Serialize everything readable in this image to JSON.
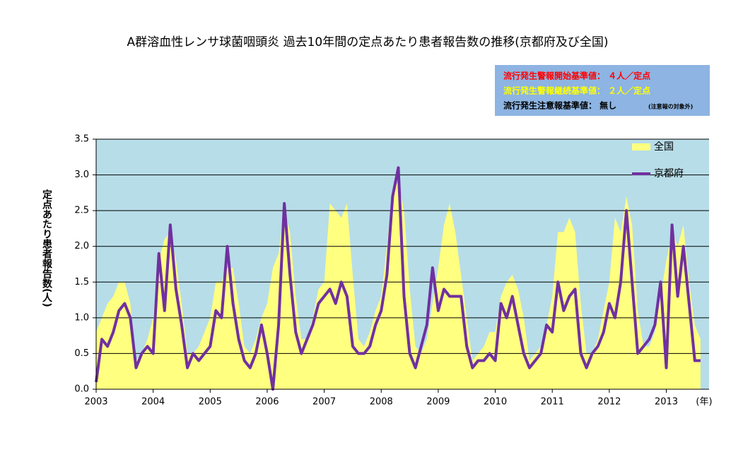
{
  "chart_data": {
    "type": "area_line",
    "title": "A群溶血性レンサ球菌咽頭炎 過去10年間の定点あたり患者報告数の推移(京都府及び全国)",
    "annotations": [
      "流行発生警報開始基準値： ４人／定点",
      "流行発生警報継続基準値： ２人／定点",
      "流行発生注意報基準値： 無し",
      "(注意報の対象外)"
    ],
    "y_label": "定点あたり患者報告数(人)",
    "x_label": "(年)",
    "xlim": [
      2003,
      2013.75
    ],
    "xticks": [
      2003,
      2004,
      2005,
      2006,
      2007,
      2008,
      2009,
      2010,
      2011,
      2012,
      2013
    ],
    "ylim": [
      0,
      3.5
    ],
    "yticks": [
      {
        "value": 0,
        "label": "0.0"
      },
      0.5,
      {
        "value": 1,
        "label": "1.0"
      },
      1.5,
      {
        "value": 2,
        "label": "2.0"
      },
      2.5,
      {
        "value": 3,
        "label": "3.0"
      },
      3.5
    ],
    "grid": true,
    "x": [
      2003.0,
      2003.1,
      2003.2,
      2003.3,
      2003.4,
      2003.5,
      2003.6,
      2003.7,
      2003.8,
      2003.9,
      2004.0,
      2004.1,
      2004.2,
      2004.3,
      2004.4,
      2004.5,
      2004.6,
      2004.7,
      2004.8,
      2004.9,
      2005.0,
      2005.1,
      2005.2,
      2005.3,
      2005.4,
      2005.5,
      2005.6,
      2005.7,
      2005.8,
      2005.9,
      2006.0,
      2006.1,
      2006.2,
      2006.3,
      2006.4,
      2006.5,
      2006.6,
      2006.7,
      2006.8,
      2006.9,
      2007.0,
      2007.1,
      2007.2,
      2007.3,
      2007.4,
      2007.5,
      2007.6,
      2007.7,
      2007.8,
      2007.9,
      2008.0,
      2008.1,
      2008.2,
      2008.3,
      2008.4,
      2008.5,
      2008.6,
      2008.7,
      2008.8,
      2008.9,
      2009.0,
      2009.1,
      2009.2,
      2009.3,
      2009.4,
      2009.5,
      2009.6,
      2009.7,
      2009.8,
      2009.9,
      2010.0,
      2010.1,
      2010.2,
      2010.3,
      2010.4,
      2010.5,
      2010.6,
      2010.7,
      2010.8,
      2010.9,
      2011.0,
      2011.1,
      2011.2,
      2011.3,
      2011.4,
      2011.5,
      2011.6,
      2011.7,
      2011.8,
      2011.9,
      2012.0,
      2012.1,
      2012.2,
      2012.3,
      2012.4,
      2012.5,
      2012.6,
      2012.7,
      2012.8,
      2012.9,
      2013.0,
      2013.1,
      2013.2,
      2013.3,
      2013.4,
      2013.5,
      2013.6
    ],
    "series": [
      {
        "name": "全国",
        "kind": "area",
        "color": "#ffff80",
        "values": [
          0.8,
          1.0,
          1.2,
          1.3,
          1.5,
          1.5,
          1.2,
          0.4,
          0.5,
          0.7,
          1.0,
          1.8,
          2.1,
          2.2,
          1.8,
          1.2,
          0.5,
          0.5,
          0.6,
          0.8,
          1.0,
          1.5,
          1.5,
          1.7,
          1.7,
          1.2,
          0.6,
          0.5,
          0.7,
          1.0,
          1.2,
          1.7,
          1.9,
          2.5,
          2.2,
          1.3,
          0.7,
          0.7,
          1.0,
          1.4,
          1.5,
          2.6,
          2.5,
          2.4,
          2.6,
          1.6,
          0.7,
          0.6,
          0.8,
          1.1,
          1.3,
          2.0,
          2.8,
          2.9,
          2.5,
          1.4,
          0.6,
          0.5,
          0.7,
          1.2,
          1.7,
          2.3,
          2.6,
          2.2,
          1.6,
          1.0,
          0.4,
          0.5,
          0.6,
          0.8,
          0.8,
          1.3,
          1.5,
          1.6,
          1.4,
          1.0,
          0.4,
          0.5,
          0.6,
          0.9,
          1.3,
          2.2,
          2.2,
          2.4,
          2.2,
          1.2,
          0.5,
          0.5,
          0.7,
          1.1,
          1.5,
          2.4,
          2.2,
          2.7,
          2.3,
          1.1,
          0.6,
          0.6,
          0.8,
          1.3,
          1.8,
          2.2,
          2.0,
          2.3,
          1.5,
          0.9,
          0.7
        ]
      },
      {
        "name": "京都府",
        "kind": "line",
        "color": "#7030a0",
        "values": [
          0.1,
          0.7,
          0.6,
          0.8,
          1.1,
          1.2,
          1.0,
          0.3,
          0.5,
          0.6,
          0.5,
          1.9,
          1.1,
          2.3,
          1.4,
          0.9,
          0.3,
          0.5,
          0.4,
          0.5,
          0.6,
          1.1,
          1.0,
          2.0,
          1.2,
          0.7,
          0.4,
          0.3,
          0.5,
          0.9,
          0.5,
          0.0,
          0.9,
          2.6,
          1.6,
          0.8,
          0.5,
          0.7,
          0.9,
          1.2,
          1.3,
          1.4,
          1.2,
          1.5,
          1.3,
          0.6,
          0.5,
          0.5,
          0.6,
          0.9,
          1.1,
          1.6,
          2.7,
          3.1,
          1.3,
          0.5,
          0.3,
          0.6,
          0.9,
          1.7,
          1.1,
          1.4,
          1.3,
          1.3,
          1.3,
          0.6,
          0.3,
          0.4,
          0.4,
          0.5,
          0.4,
          1.2,
          1.0,
          1.3,
          0.9,
          0.5,
          0.3,
          0.4,
          0.5,
          0.9,
          0.8,
          1.5,
          1.1,
          1.3,
          1.4,
          0.5,
          0.3,
          0.5,
          0.6,
          0.8,
          1.2,
          1.0,
          1.5,
          2.5,
          1.5,
          0.5,
          0.6,
          0.7,
          0.9,
          1.5,
          0.3,
          2.3,
          1.3,
          2.0,
          1.2,
          0.4,
          0.4
        ]
      }
    ]
  }
}
